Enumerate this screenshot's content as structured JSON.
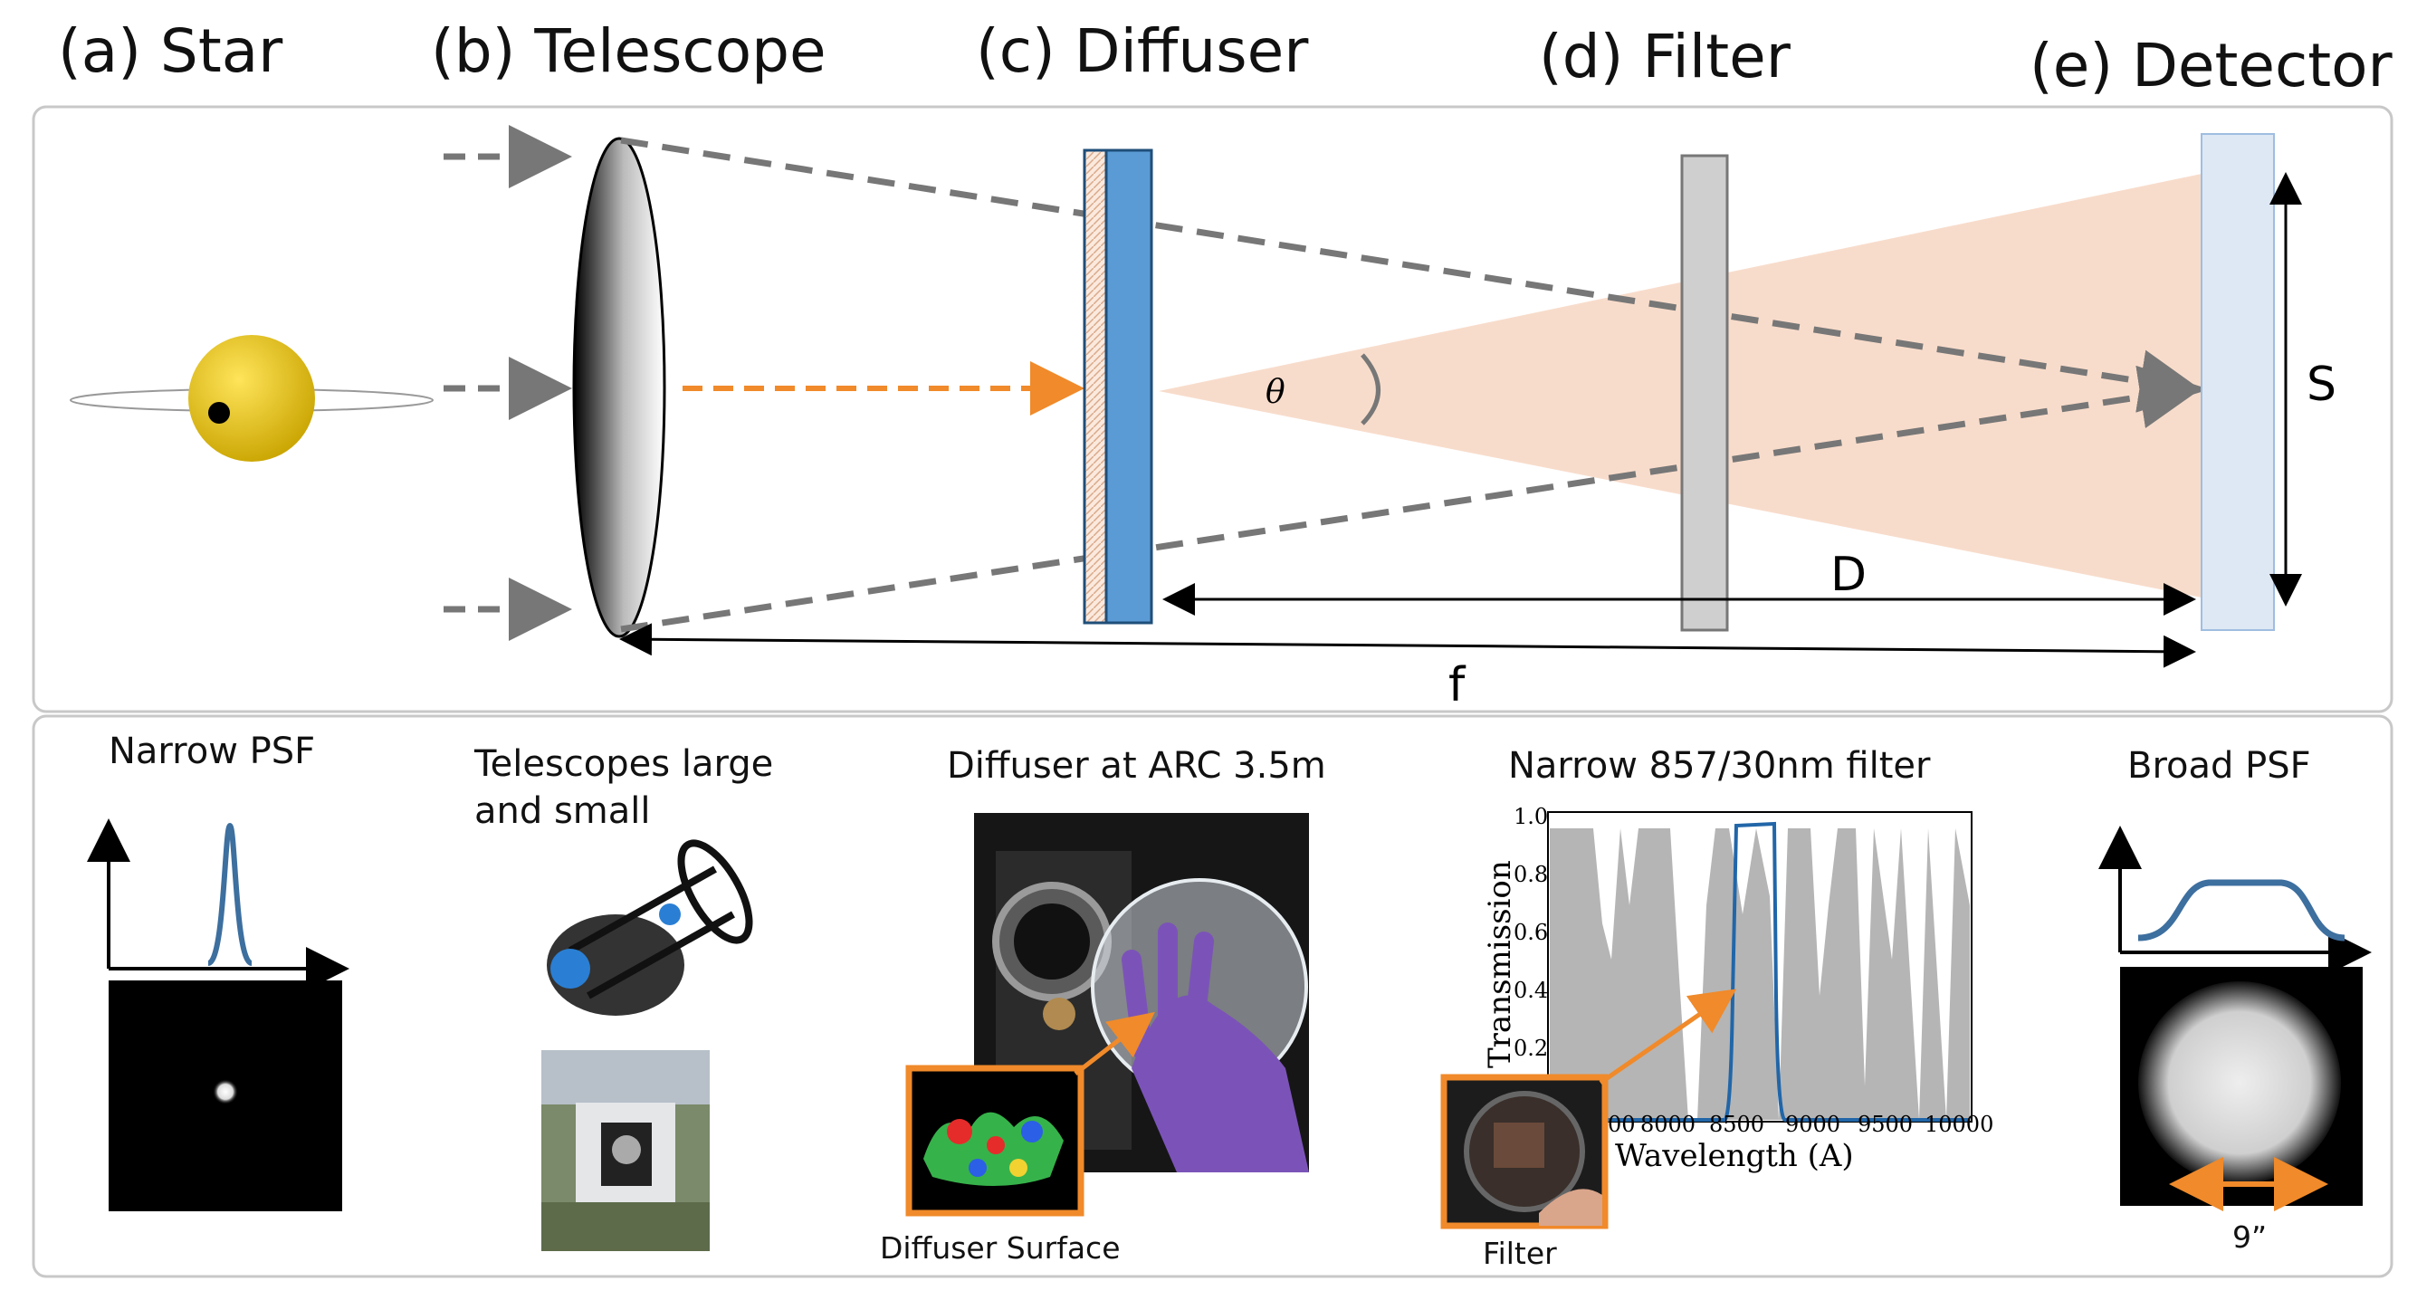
{
  "headers": {
    "star": "(a) Star",
    "telescope": "(b) Telescope",
    "diffuser": "(c) Diffuser",
    "filter": "(d) Filter",
    "detector": "(e) Detector"
  },
  "diagram": {
    "theta": "θ",
    "size_label": "S",
    "distance_label": "D",
    "focal_label": "f"
  },
  "panels": {
    "narrow_psf": {
      "title": "Narrow PSF"
    },
    "telescopes": {
      "title_line1": "Telescopes large",
      "title_line2": "and small"
    },
    "diffuser_photo": {
      "title": "Diffuser at ARC 3.5m",
      "inset_caption": "Diffuser Surface"
    },
    "filter_plot": {
      "title": "Narrow 857/30nm filter",
      "inset_caption": "Filter",
      "ylabel": "Transmission",
      "xlabel": "Wavelength (A)",
      "xticks": [
        "00",
        "8000",
        "8500",
        "9000",
        "9500",
        "10000"
      ],
      "yticks": [
        "1.0",
        "0.8",
        "0.6",
        "0.4",
        "0.2"
      ]
    },
    "broad_psf": {
      "title": "Broad PSF",
      "width_label": "9”"
    }
  },
  "colors": {
    "star": "#f2d230",
    "diffuser": "#5b9bd5",
    "beam": "#f8dccb",
    "orange": "#f08a2a",
    "filter": "#cfcfcf",
    "detector": "#dde8f4",
    "psf_line": "#3d6f9f",
    "panel_border": "#c8c8c8"
  }
}
